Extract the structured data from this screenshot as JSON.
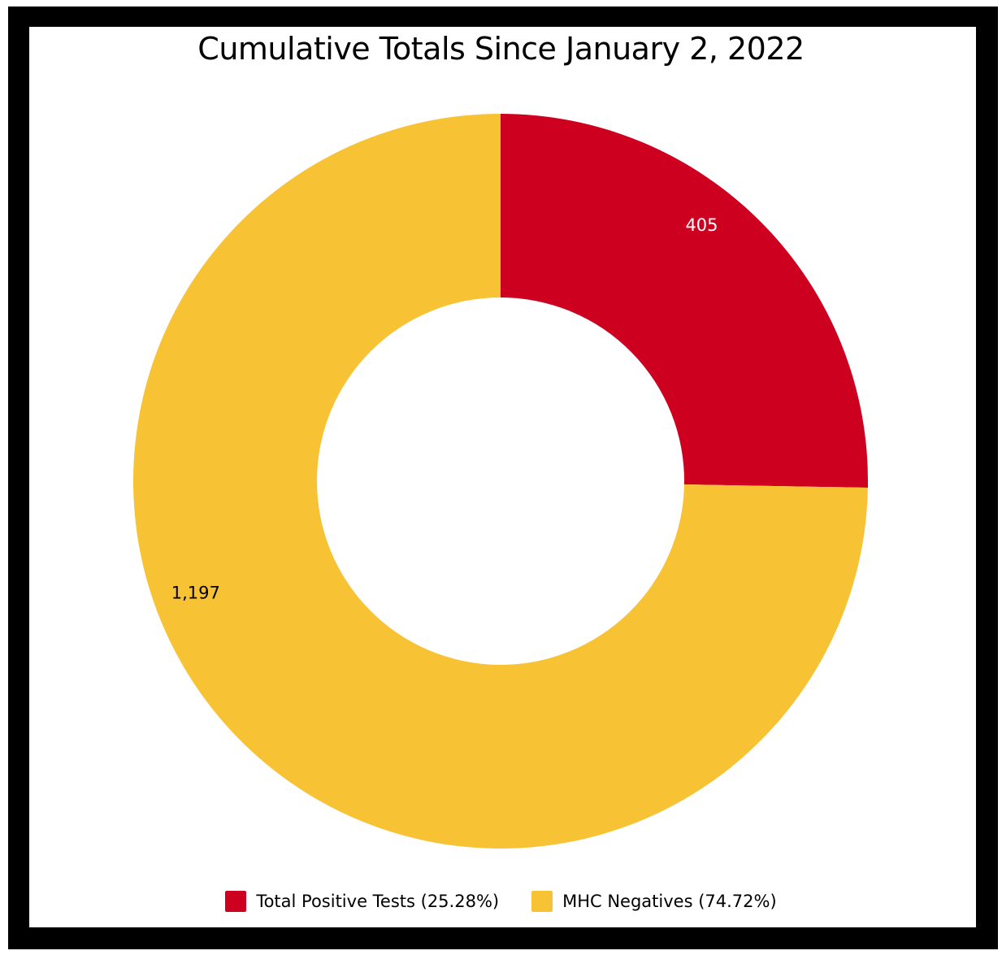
{
  "colors": {
    "positive": "#CE0020",
    "negative": "#F8C235",
    "frame": "#000000",
    "background": "#FFFFFF"
  },
  "chart_data": {
    "type": "pie",
    "variant": "donut",
    "title": "Cumulative Totals Since January 2, 2022",
    "legend_position": "bottom",
    "slices": [
      {
        "label": "Total Positive Tests",
        "legend_text": "Total Positive Tests (25.28%)",
        "value": 405,
        "value_label": "405",
        "percent": 25.28,
        "color": "#CE0020",
        "label_color": "#FFFFFF"
      },
      {
        "label": "MHC Negatives",
        "legend_text": "MHC Negatives (74.72%)",
        "value": 1197,
        "value_label": "1,197",
        "percent": 74.72,
        "color": "#F8C235",
        "label_color": "#000000"
      }
    ]
  }
}
